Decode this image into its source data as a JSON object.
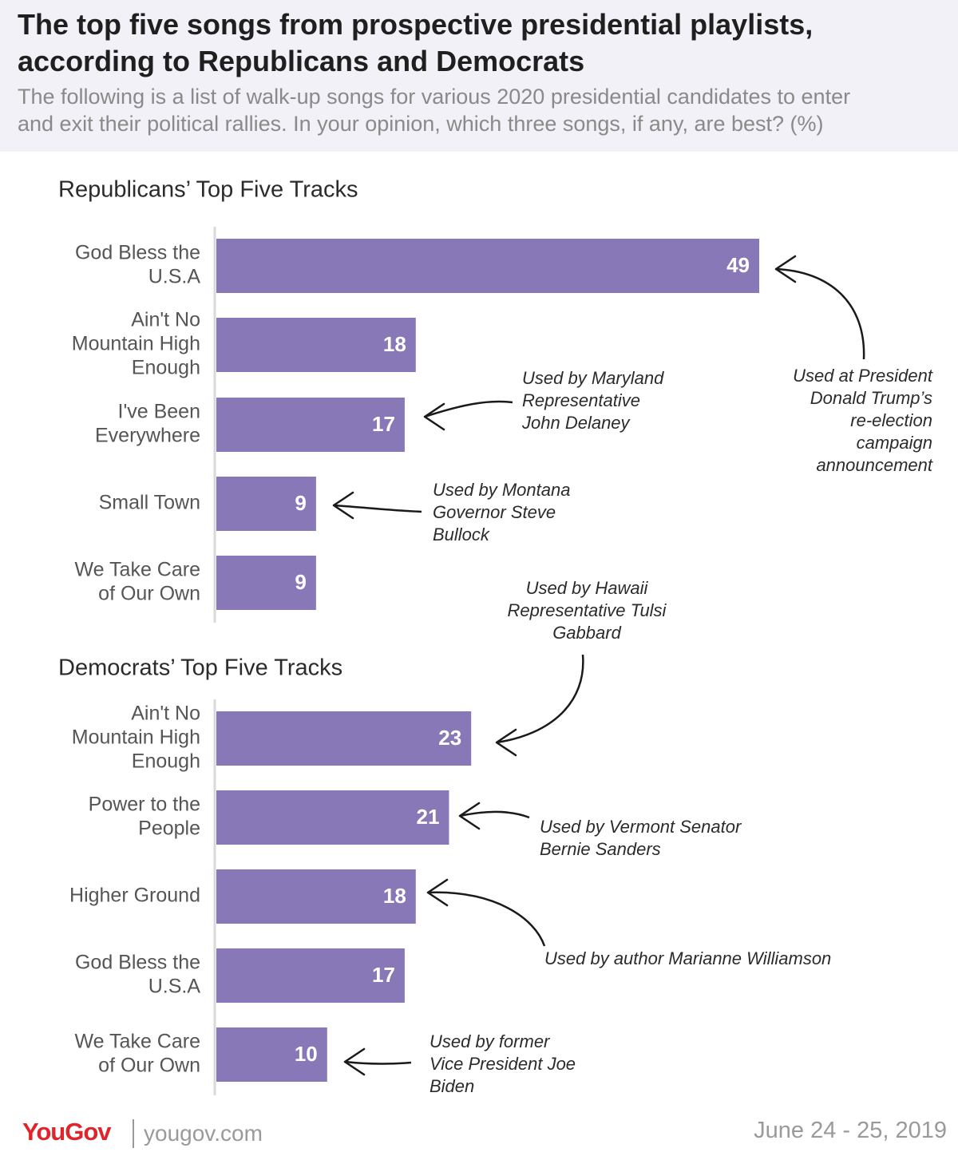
{
  "header": {
    "title": "The top five songs from prospective presidential playlists,\naccording to Republicans and Democrats",
    "subtitle": "The following is a list of walk-up songs for various 2020 presidential candidates to enter\nand exit their political rallies. In your opinion, which three songs, if any, are best? (%)"
  },
  "footer": {
    "logo": "YouGov",
    "site": "yougov.com",
    "date": "June 24 - 25, 2019"
  },
  "colors": {
    "bar": "#8878b8",
    "bar_label": "#ffffff",
    "header_bg": "#f1f1f7"
  },
  "chart_data": [
    {
      "type": "bar",
      "orientation": "horizontal",
      "title": "Republicans’ Top Five Tracks",
      "categories": [
        "God Bless the\nU.S.A",
        "Ain't No\nMountain High\nEnough",
        "I've Been\nEverywhere",
        "Small Town",
        "We Take Care\nof Our Own"
      ],
      "values": [
        49,
        18,
        17,
        9,
        9
      ],
      "annotations": [
        {
          "category_index": 0,
          "text": "Used at President\nDonald Trump’s\nre-election\ncampaign\nannouncement"
        },
        {
          "category_index": 2,
          "text": "Used by Maryland\nRepresentative\nJohn Delaney"
        },
        {
          "category_index": 3,
          "text": "Used by Montana\nGovernor Steve\nBullock"
        }
      ]
    },
    {
      "type": "bar",
      "orientation": "horizontal",
      "title": "Democrats’ Top Five Tracks",
      "categories": [
        "Ain't No\nMountain High\nEnough",
        "Power to the\nPeople",
        "Higher Ground",
        "God Bless the\nU.S.A",
        "We Take Care\nof Our Own"
      ],
      "values": [
        23,
        21,
        18,
        17,
        10
      ],
      "annotations": [
        {
          "category_index": 0,
          "text": "Used by Hawaii\nRepresentative Tulsi\nGabbard"
        },
        {
          "category_index": 1,
          "text": "Used by Vermont Senator\nBernie Sanders"
        },
        {
          "category_index": 2,
          "text": "Used by author Marianne Williamson"
        },
        {
          "category_index": 4,
          "text": "Used by former\nVice President Joe\nBiden"
        }
      ]
    }
  ]
}
